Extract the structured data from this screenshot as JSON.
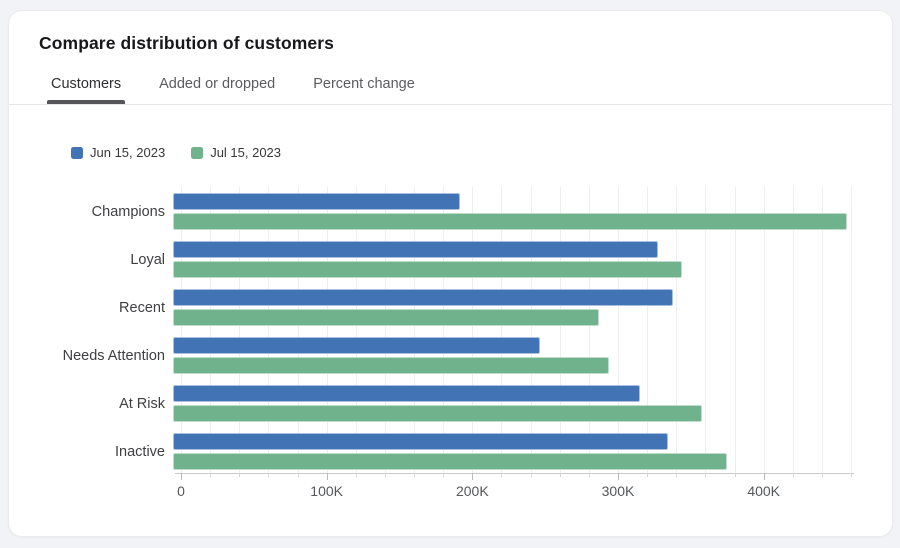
{
  "card": {
    "title": "Compare distribution of customers",
    "tabs": [
      {
        "label": "Customers",
        "active": true
      },
      {
        "label": "Added or dropped",
        "active": false
      },
      {
        "label": "Percent change",
        "active": false
      }
    ]
  },
  "legend": [
    {
      "label": "Jun 15, 2023",
      "color": "#4273b4"
    },
    {
      "label": "Jul 15, 2023",
      "color": "#6fb28c"
    }
  ],
  "chart_data": {
    "type": "bar",
    "orientation": "horizontal",
    "title": "Compare distribution of customers",
    "categories": [
      "Champions",
      "Loyal",
      "Recent",
      "Needs Attention",
      "At Risk",
      "Inactive"
    ],
    "series": [
      {
        "name": "Jun 15, 2023",
        "color": "#4273b4",
        "values": [
          195000,
          329000,
          339000,
          249000,
          317000,
          336000
        ]
      },
      {
        "name": "Jul 15, 2023",
        "color": "#6fb28c",
        "values": [
          457000,
          345000,
          289000,
          296000,
          359000,
          376000
        ]
      }
    ],
    "xlim": [
      0,
      462000
    ],
    "x_ticks": [
      {
        "value": 0,
        "label": "0"
      },
      {
        "value": 100000,
        "label": "100K"
      },
      {
        "value": 200000,
        "label": "200K"
      },
      {
        "value": 300000,
        "label": "300K"
      },
      {
        "value": 400000,
        "label": "400K"
      }
    ],
    "minor_grid_step": 20000,
    "grid": true,
    "legend_position": "top",
    "xlabel": "",
    "ylabel": ""
  }
}
